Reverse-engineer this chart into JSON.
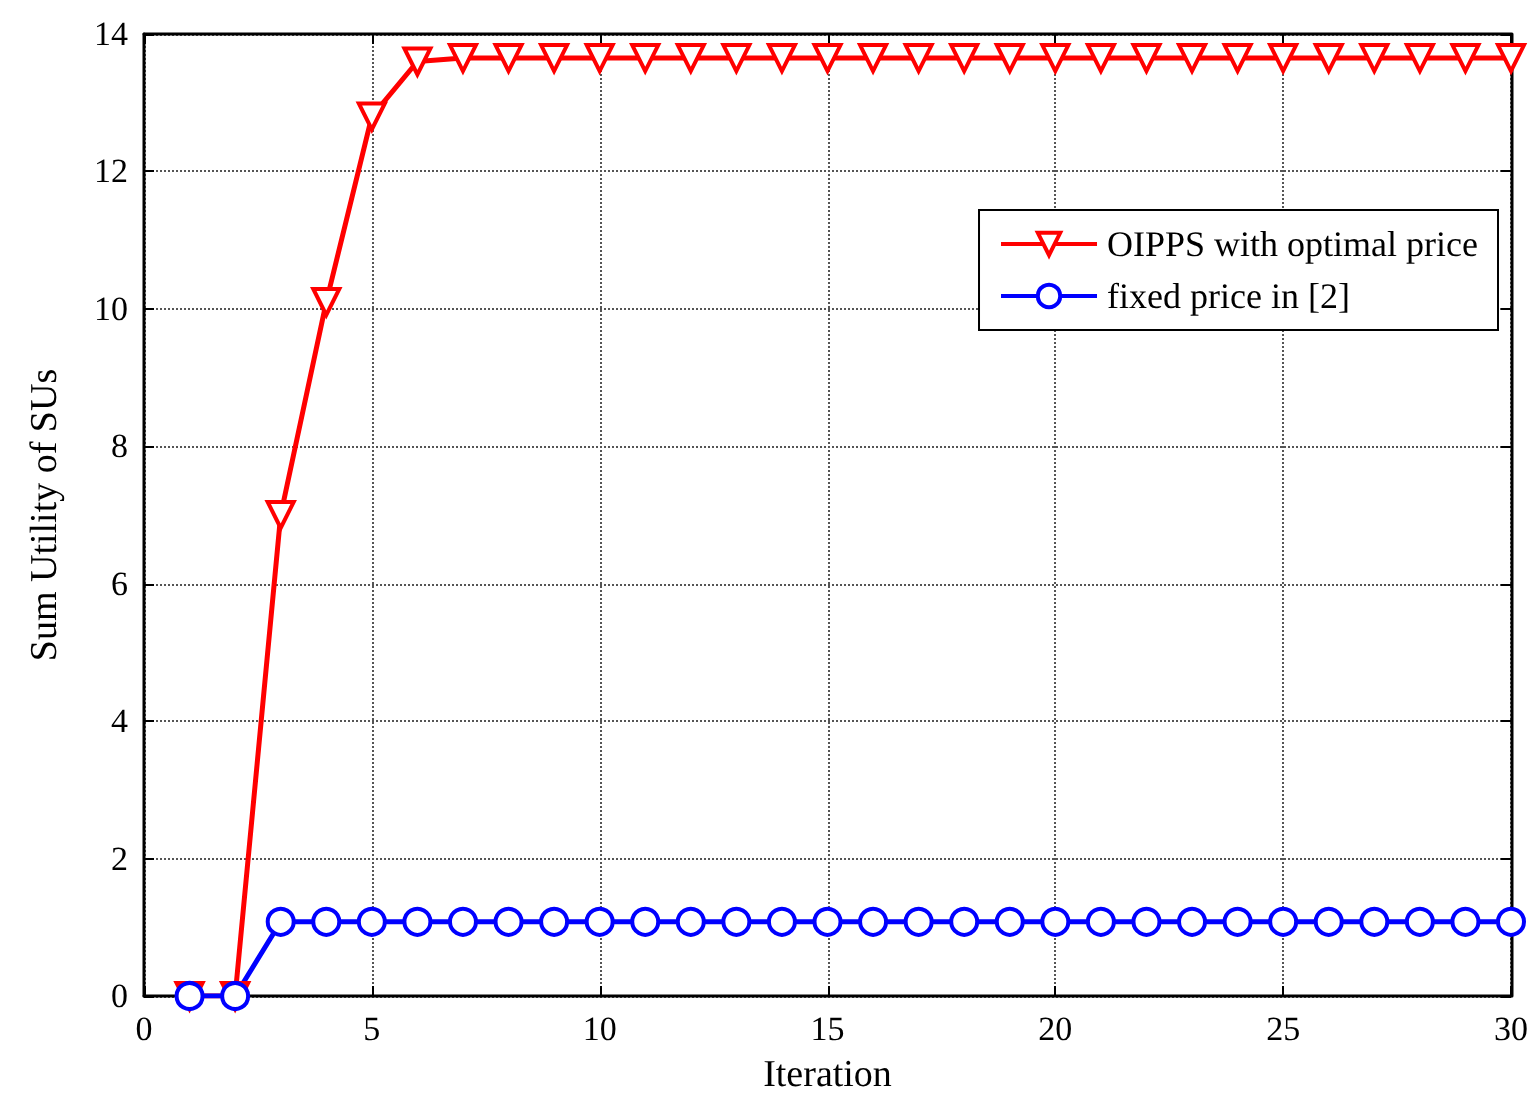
{
  "chart_data": {
    "type": "line",
    "xlabel": "Iteration",
    "ylabel": "Sum Utility of SUs",
    "x": [
      1,
      2,
      3,
      4,
      5,
      6,
      7,
      8,
      9,
      10,
      11,
      12,
      13,
      14,
      15,
      16,
      17,
      18,
      19,
      20,
      21,
      22,
      23,
      24,
      25,
      26,
      27,
      28,
      29,
      30
    ],
    "series": [
      {
        "name": "OIPPS with optimal price",
        "color": "#ff0000",
        "marker": "triangle",
        "values": [
          0,
          0,
          7.0,
          10.1,
          12.8,
          13.6,
          13.65,
          13.65,
          13.65,
          13.65,
          13.65,
          13.65,
          13.65,
          13.65,
          13.65,
          13.65,
          13.65,
          13.65,
          13.65,
          13.65,
          13.65,
          13.65,
          13.65,
          13.65,
          13.65,
          13.65,
          13.65,
          13.65,
          13.65,
          13.65
        ]
      },
      {
        "name": "fixed price in [2]",
        "color": "#0000ff",
        "marker": "circle",
        "values": [
          0,
          0,
          1.08,
          1.08,
          1.08,
          1.08,
          1.08,
          1.08,
          1.08,
          1.08,
          1.08,
          1.08,
          1.08,
          1.08,
          1.08,
          1.08,
          1.08,
          1.08,
          1.08,
          1.08,
          1.08,
          1.08,
          1.08,
          1.08,
          1.08,
          1.08,
          1.08,
          1.08,
          1.08,
          1.08
        ]
      }
    ],
    "xlim": [
      0,
      30
    ],
    "xticks": [
      0,
      5,
      10,
      15,
      20,
      25,
      30
    ],
    "ylim": [
      0,
      14
    ],
    "yticks": [
      0,
      2,
      4,
      6,
      8,
      10,
      12,
      14
    ],
    "grid": true,
    "legend": "top right",
    "line_style": "solid"
  }
}
